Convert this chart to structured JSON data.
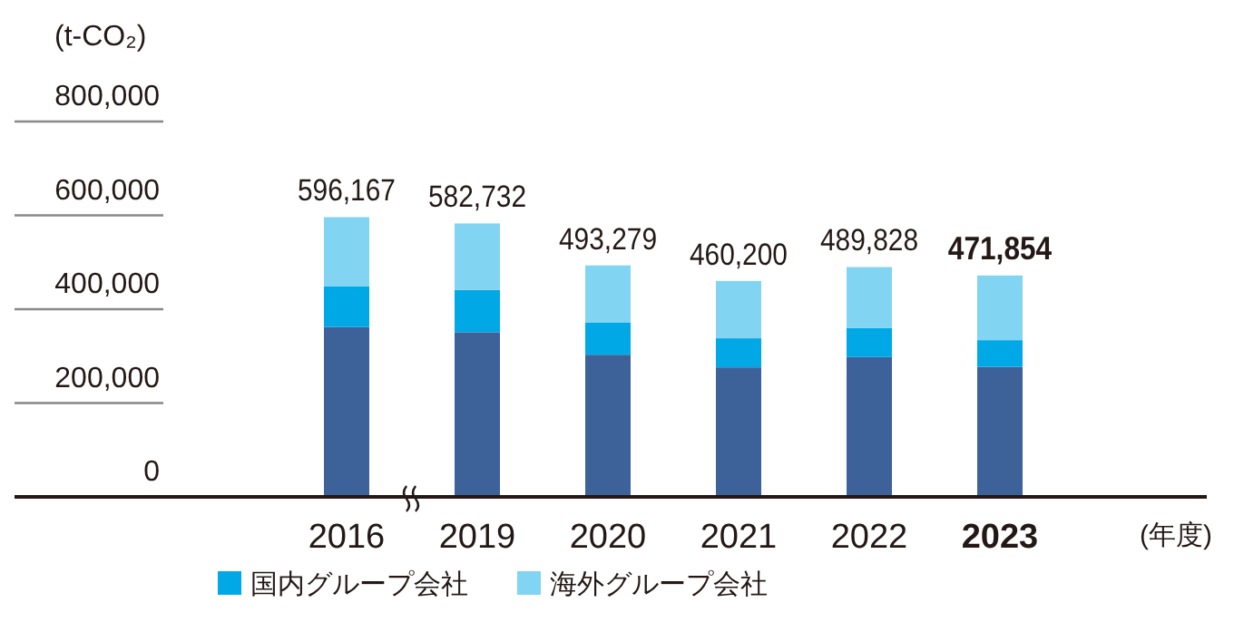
{
  "chart_data": {
    "type": "bar",
    "stacked": true,
    "ylabel": "(t-CO₂)",
    "xlabel": "(年度)",
    "categories": [
      "2016",
      "2019",
      "2020",
      "2021",
      "2022",
      "2023"
    ],
    "series": [
      {
        "color": "#3d6199",
        "values": [
          362000,
          351000,
          303000,
          276000,
          298000,
          277000
        ]
      },
      {
        "name": "国内グループ会社",
        "color": "#00a8e6",
        "values": [
          87000,
          90000,
          69000,
          62000,
          62000,
          57000
        ]
      },
      {
        "name": "海外グループ会社",
        "color": "#82d4f3",
        "values": [
          147167,
          141732,
          121279,
          122200,
          129828,
          137854
        ]
      }
    ],
    "totals": [
      "596,167",
      "582,732",
      "493,279",
      "460,200",
      "489,828",
      "471,854"
    ],
    "ylim": [
      0,
      800000
    ],
    "yticks": [
      {
        "value": 0,
        "label": "0"
      },
      {
        "value": 200000,
        "label": "200,000"
      },
      {
        "value": 400000,
        "label": "400,000"
      },
      {
        "value": 600000,
        "label": "600,000"
      },
      {
        "value": 800000,
        "label": "800,000"
      }
    ],
    "grid": false,
    "legend": "bottom"
  }
}
